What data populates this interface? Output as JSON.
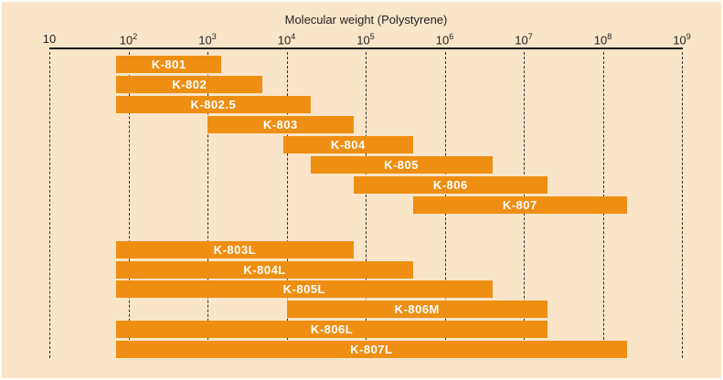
{
  "chart_data": {
    "type": "bar",
    "subtype": "horizontal-range-bars",
    "title": "Molecular weight (Polystyrene)",
    "x_scale": "log10",
    "x_range": [
      10,
      1000000000
    ],
    "x_tick_exponents": [
      1,
      2,
      3,
      4,
      5,
      6,
      7,
      8,
      9
    ],
    "grid": "vertical-dashed-at-decades",
    "bars": [
      {
        "label": "K-801",
        "min": 70,
        "max": 1500,
        "group": 1
      },
      {
        "label": "K-802",
        "min": 70,
        "max": 5000,
        "group": 1
      },
      {
        "label": "K-802.5",
        "min": 70,
        "max": 20000,
        "group": 1
      },
      {
        "label": "K-803",
        "min": 1000,
        "max": 70000,
        "group": 1
      },
      {
        "label": "K-804",
        "min": 9000,
        "max": 400000,
        "group": 1
      },
      {
        "label": "K-805",
        "min": 20000,
        "max": 4000000,
        "group": 1
      },
      {
        "label": "K-806",
        "min": 70000,
        "max": 20000000,
        "group": 1
      },
      {
        "label": "K-807",
        "min": 400000,
        "max": 200000000,
        "group": 1
      },
      {
        "label": "K-803L",
        "min": 70,
        "max": 70000,
        "group": 2
      },
      {
        "label": "K-804L",
        "min": 70,
        "max": 400000,
        "group": 2
      },
      {
        "label": "K-805L",
        "min": 70,
        "max": 4000000,
        "group": 2
      },
      {
        "label": "K-806M",
        "min": 10000,
        "max": 20000000,
        "group": 2
      },
      {
        "label": "K-806L",
        "min": 70,
        "max": 20000000,
        "group": 2
      },
      {
        "label": "K-807L",
        "min": 70,
        "max": 200000000,
        "group": 2
      }
    ],
    "colors": {
      "background": "#fae5c8",
      "bar": "#ee8f13",
      "bar_label": "#ffffff",
      "axis": "#111111",
      "text": "#222222",
      "gridline": "#333333"
    }
  }
}
